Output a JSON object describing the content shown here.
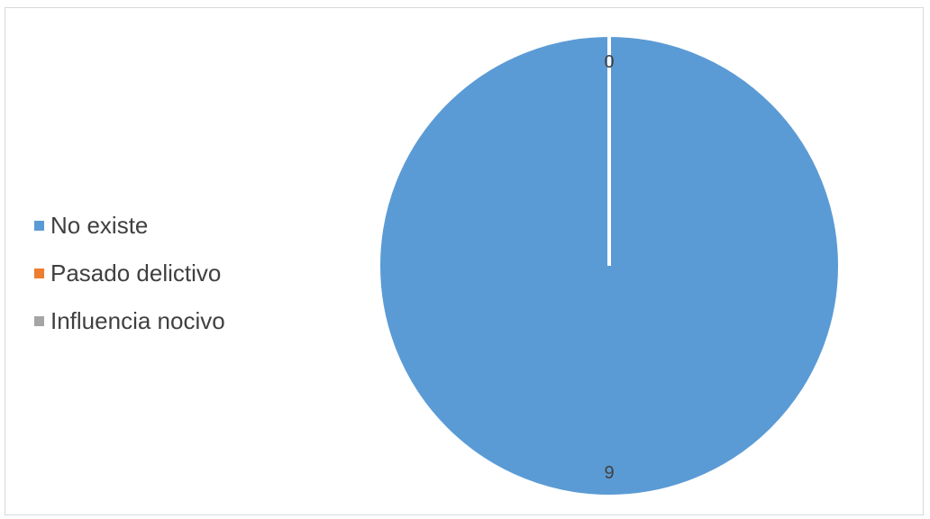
{
  "chart_data": {
    "type": "pie",
    "categories": [
      "No existe",
      "Pasado delictivo",
      "Influencia nocivo"
    ],
    "values": [
      9,
      0,
      0
    ],
    "data_labels": [
      "9",
      "0",
      "0"
    ],
    "colors": [
      "#5b9bd5",
      "#ed7d31",
      "#a5a5a5"
    ],
    "legend_position": "left",
    "title": ""
  }
}
